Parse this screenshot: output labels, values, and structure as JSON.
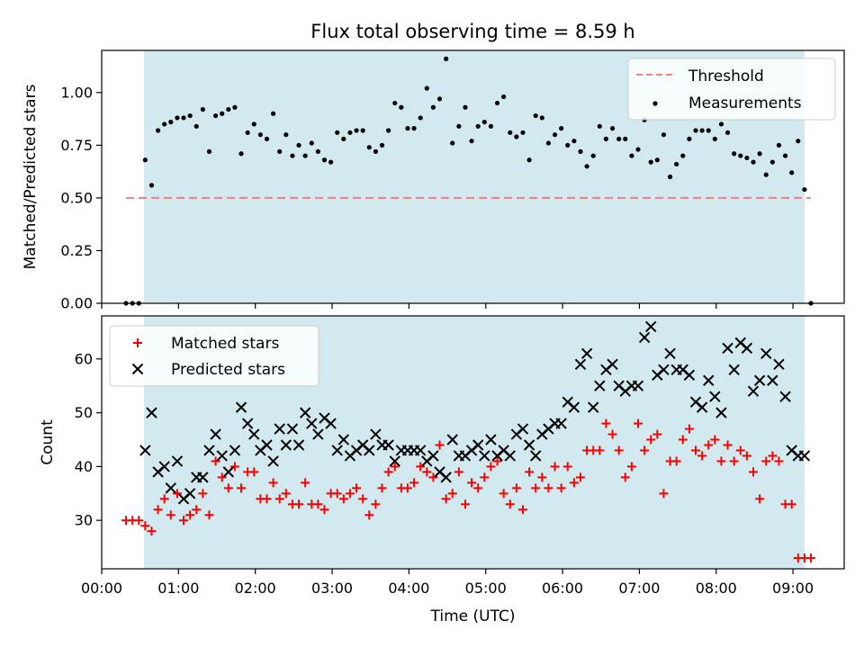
{
  "chart_data": [
    {
      "type": "scatter",
      "title": "Flux total observing time = 8.59 h",
      "xlabel": "",
      "ylabel": "Matched/Predicted stars",
      "xlim": [
        "00:00",
        "09:40"
      ],
      "ylim": [
        0,
        1.2
      ],
      "yticks": [
        "0.00",
        "0.25",
        "0.50",
        "0.75",
        "1.00"
      ],
      "grid": false,
      "legend_position": "top-right",
      "shaded_region": {
        "x_start": "00:33",
        "x_end": "09:09",
        "color": "#d3e9f0"
      },
      "threshold": {
        "name": "Threshold",
        "value": 0.5,
        "x_start": "00:19",
        "x_end": "09:14",
        "color": "#f08080",
        "style": "dashed"
      },
      "series": [
        {
          "name": "Measurements",
          "color": "#000000",
          "marker": "dot",
          "x": [
            "00:19",
            "00:24",
            "00:29",
            "00:34",
            "00:39",
            "00:44",
            "00:49",
            "00:54",
            "00:59",
            "01:04",
            "01:09",
            "01:14",
            "01:19",
            "01:24",
            "01:29",
            "01:34",
            "01:39",
            "01:44",
            "01:49",
            "01:54",
            "01:59",
            "02:04",
            "02:09",
            "02:14",
            "02:19",
            "02:24",
            "02:29",
            "02:34",
            "02:39",
            "02:44",
            "02:49",
            "02:54",
            "02:59",
            "03:04",
            "03:09",
            "03:14",
            "03:19",
            "03:24",
            "03:29",
            "03:34",
            "03:39",
            "03:44",
            "03:49",
            "03:54",
            "03:59",
            "04:04",
            "04:09",
            "04:14",
            "04:19",
            "04:24",
            "04:29",
            "04:34",
            "04:39",
            "04:44",
            "04:49",
            "04:54",
            "04:59",
            "05:04",
            "05:09",
            "05:14",
            "05:19",
            "05:24",
            "05:29",
            "05:34",
            "05:39",
            "05:44",
            "05:49",
            "05:54",
            "05:59",
            "06:04",
            "06:09",
            "06:14",
            "06:19",
            "06:24",
            "06:29",
            "06:34",
            "06:39",
            "06:44",
            "06:49",
            "06:54",
            "06:59",
            "07:04",
            "07:09",
            "07:14",
            "07:19",
            "07:24",
            "07:29",
            "07:34",
            "07:39",
            "07:44",
            "07:49",
            "07:54",
            "07:59",
            "08:04",
            "08:09",
            "08:14",
            "08:19",
            "08:24",
            "08:29",
            "08:34",
            "08:39",
            "08:44",
            "08:49",
            "08:54",
            "08:59",
            "09:04",
            "09:09",
            "09:14"
          ],
          "y": [
            0.0,
            0.0,
            0.0,
            0.68,
            0.56,
            0.82,
            0.85,
            0.86,
            0.88,
            0.88,
            0.89,
            0.84,
            0.92,
            0.72,
            0.89,
            0.9,
            0.92,
            0.93,
            0.71,
            0.81,
            0.85,
            0.8,
            0.78,
            0.9,
            0.72,
            0.8,
            0.7,
            0.75,
            0.7,
            0.76,
            0.72,
            0.68,
            0.67,
            0.81,
            0.78,
            0.81,
            0.82,
            0.82,
            0.74,
            0.72,
            0.75,
            0.82,
            0.95,
            0.93,
            0.83,
            0.83,
            0.88,
            1.02,
            0.93,
            0.97,
            1.16,
            0.76,
            0.84,
            0.93,
            0.77,
            0.84,
            0.86,
            0.84,
            0.95,
            0.98,
            0.81,
            0.79,
            0.81,
            0.68,
            0.89,
            0.88,
            0.76,
            0.8,
            0.83,
            0.75,
            0.77,
            0.72,
            0.65,
            0.7,
            0.84,
            0.78,
            0.83,
            0.78,
            0.78,
            0.7,
            0.73,
            0.87,
            0.67,
            0.68,
            0.8,
            0.6,
            0.66,
            0.7,
            0.78,
            0.82,
            0.82,
            0.82,
            0.78,
            0.85,
            0.81,
            0.71,
            0.7,
            0.69,
            0.67,
            0.71,
            0.61,
            0.67,
            0.75,
            0.7,
            0.62,
            0.77,
            0.54,
            0.0
          ]
        }
      ]
    },
    {
      "type": "scatter",
      "title": "",
      "xlabel": "Time (UTC)",
      "ylabel": "Count",
      "xlim": [
        "00:00",
        "09:40"
      ],
      "ylim": [
        21,
        68
      ],
      "yticks": [
        "30",
        "40",
        "50",
        "60"
      ],
      "xticks": [
        "00:00",
        "01:00",
        "02:00",
        "03:00",
        "04:00",
        "05:00",
        "06:00",
        "07:00",
        "08:00",
        "09:00"
      ],
      "grid": false,
      "legend_position": "top-left",
      "shaded_region": {
        "x_start": "00:33",
        "x_end": "09:09",
        "color": "#d3e9f0"
      },
      "series": [
        {
          "name": "Matched stars",
          "color": "#ff0000",
          "marker": "plus",
          "x": [
            "00:19",
            "00:24",
            "00:29",
            "00:34",
            "00:39",
            "00:44",
            "00:49",
            "00:54",
            "00:59",
            "01:04",
            "01:09",
            "01:14",
            "01:19",
            "01:24",
            "01:29",
            "01:34",
            "01:39",
            "01:44",
            "01:49",
            "01:54",
            "01:59",
            "02:04",
            "02:09",
            "02:14",
            "02:19",
            "02:24",
            "02:29",
            "02:34",
            "02:39",
            "02:44",
            "02:49",
            "02:54",
            "02:59",
            "03:04",
            "03:09",
            "03:14",
            "03:19",
            "03:24",
            "03:29",
            "03:34",
            "03:39",
            "03:44",
            "03:49",
            "03:54",
            "03:59",
            "04:04",
            "04:09",
            "04:14",
            "04:19",
            "04:24",
            "04:29",
            "04:34",
            "04:39",
            "04:44",
            "04:49",
            "04:54",
            "04:59",
            "05:04",
            "05:09",
            "05:14",
            "05:19",
            "05:24",
            "05:29",
            "05:34",
            "05:39",
            "05:44",
            "05:49",
            "05:54",
            "05:59",
            "06:04",
            "06:09",
            "06:14",
            "06:19",
            "06:24",
            "06:29",
            "06:34",
            "06:39",
            "06:44",
            "06:49",
            "06:54",
            "06:59",
            "07:04",
            "07:09",
            "07:14",
            "07:19",
            "07:24",
            "07:29",
            "07:34",
            "07:39",
            "07:44",
            "07:49",
            "07:54",
            "07:59",
            "08:04",
            "08:09",
            "08:14",
            "08:19",
            "08:24",
            "08:29",
            "08:34",
            "08:39",
            "08:44",
            "08:49",
            "08:54",
            "08:59",
            "09:04",
            "09:09",
            "09:14"
          ],
          "y": [
            30,
            30,
            30,
            29,
            28,
            32,
            34,
            31,
            35,
            30,
            31,
            32,
            35,
            31,
            41,
            38,
            36,
            40,
            36,
            39,
            39,
            34,
            34,
            37,
            34,
            35,
            33,
            33,
            37,
            33,
            33,
            32,
            35,
            35,
            34,
            35,
            36,
            34,
            31,
            33,
            36,
            39,
            40,
            36,
            36,
            37,
            40,
            39,
            38,
            44,
            34,
            35,
            39,
            33,
            37,
            36,
            38,
            40,
            41,
            35,
            33,
            36,
            32,
            39,
            36,
            38,
            36,
            40,
            36,
            40,
            37,
            38,
            43,
            43,
            43,
            48,
            46,
            43,
            38,
            40,
            48,
            43,
            45,
            46,
            35,
            41,
            41,
            45,
            47,
            43,
            42,
            44,
            45,
            41,
            44,
            41,
            43,
            42,
            39,
            34,
            41,
            42,
            41,
            33,
            33,
            23,
            23,
            23
          ]
        },
        {
          "name": "Predicted stars",
          "color": "#000000",
          "marker": "x",
          "x": [
            "00:34",
            "00:39",
            "00:44",
            "00:49",
            "00:54",
            "00:59",
            "01:04",
            "01:09",
            "01:14",
            "01:19",
            "01:24",
            "01:29",
            "01:34",
            "01:39",
            "01:44",
            "01:49",
            "01:54",
            "01:59",
            "02:04",
            "02:09",
            "02:14",
            "02:19",
            "02:24",
            "02:29",
            "02:34",
            "02:39",
            "02:44",
            "02:49",
            "02:54",
            "02:59",
            "03:04",
            "03:09",
            "03:14",
            "03:19",
            "03:24",
            "03:29",
            "03:34",
            "03:39",
            "03:44",
            "03:49",
            "03:54",
            "03:59",
            "04:04",
            "04:09",
            "04:14",
            "04:19",
            "04:24",
            "04:29",
            "04:34",
            "04:39",
            "04:44",
            "04:49",
            "04:54",
            "04:59",
            "05:04",
            "05:09",
            "05:14",
            "05:19",
            "05:24",
            "05:29",
            "05:34",
            "05:39",
            "05:44",
            "05:49",
            "05:54",
            "05:59",
            "06:04",
            "06:09",
            "06:14",
            "06:19",
            "06:24",
            "06:29",
            "06:34",
            "06:39",
            "06:44",
            "06:49",
            "06:54",
            "06:59",
            "07:04",
            "07:09",
            "07:14",
            "07:19",
            "07:24",
            "07:29",
            "07:34",
            "07:39",
            "07:44",
            "07:49",
            "07:54",
            "07:59",
            "08:04",
            "08:09",
            "08:14",
            "08:19",
            "08:24",
            "08:29",
            "08:34",
            "08:39",
            "08:44",
            "08:49",
            "08:54",
            "08:59",
            "09:04",
            "09:09"
          ],
          "y": [
            43,
            50,
            39,
            40,
            36,
            41,
            34,
            35,
            38,
            38,
            43,
            46,
            42,
            39,
            43,
            51,
            48,
            46,
            43,
            44,
            41,
            47,
            44,
            47,
            44,
            50,
            48,
            46,
            49,
            48,
            43,
            45,
            42,
            43,
            44,
            43,
            46,
            44,
            44,
            41,
            43,
            43,
            43,
            43,
            41,
            42,
            39,
            38,
            45,
            42,
            42,
            43,
            44,
            42,
            45,
            42,
            43,
            42,
            46,
            47,
            44,
            42,
            46,
            47,
            48,
            48,
            52,
            51,
            59,
            61,
            51,
            55,
            58,
            59,
            55,
            54,
            55,
            55,
            64,
            66,
            57,
            58,
            61,
            58,
            58,
            57,
            52,
            51,
            56,
            53,
            50,
            62,
            58,
            63,
            62,
            54,
            56,
            61,
            56,
            59,
            53,
            43,
            42,
            42
          ]
        }
      ]
    }
  ]
}
